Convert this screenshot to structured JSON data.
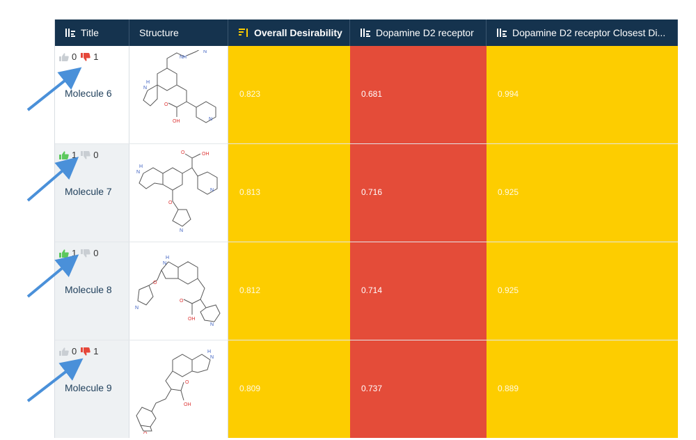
{
  "columns": {
    "title": "Title",
    "structure": "Structure",
    "overall": "Overall Desirability",
    "d2": "Dopamine D2 receptor",
    "closest": "Dopamine D2 receptor Closest Di..."
  },
  "colors": {
    "header_bg": "#15334e",
    "desirable_yellow": "#fdcd00",
    "undesirable_red": "#e44c39",
    "thumb_up_active": "#5cc85c",
    "thumb_down_active": "#e5473a",
    "thumb_inactive": "#c9ced3",
    "annotation_arrow": "#4a90d9"
  },
  "rows": [
    {
      "name": "Molecule 6",
      "up": "0",
      "down": "1",
      "up_active": false,
      "down_active": true,
      "overall": "0.823",
      "d2": "0.681",
      "closest": "0.994"
    },
    {
      "name": "Molecule 7",
      "up": "1",
      "down": "0",
      "up_active": true,
      "down_active": false,
      "overall": "0.813",
      "d2": "0.716",
      "closest": "0.925"
    },
    {
      "name": "Molecule 8",
      "up": "1",
      "down": "0",
      "up_active": true,
      "down_active": false,
      "overall": "0.812",
      "d2": "0.714",
      "closest": "0.925"
    },
    {
      "name": "Molecule 9",
      "up": "0",
      "down": "1",
      "up_active": false,
      "down_active": true,
      "overall": "0.809",
      "d2": "0.737",
      "closest": "0.889"
    }
  ]
}
